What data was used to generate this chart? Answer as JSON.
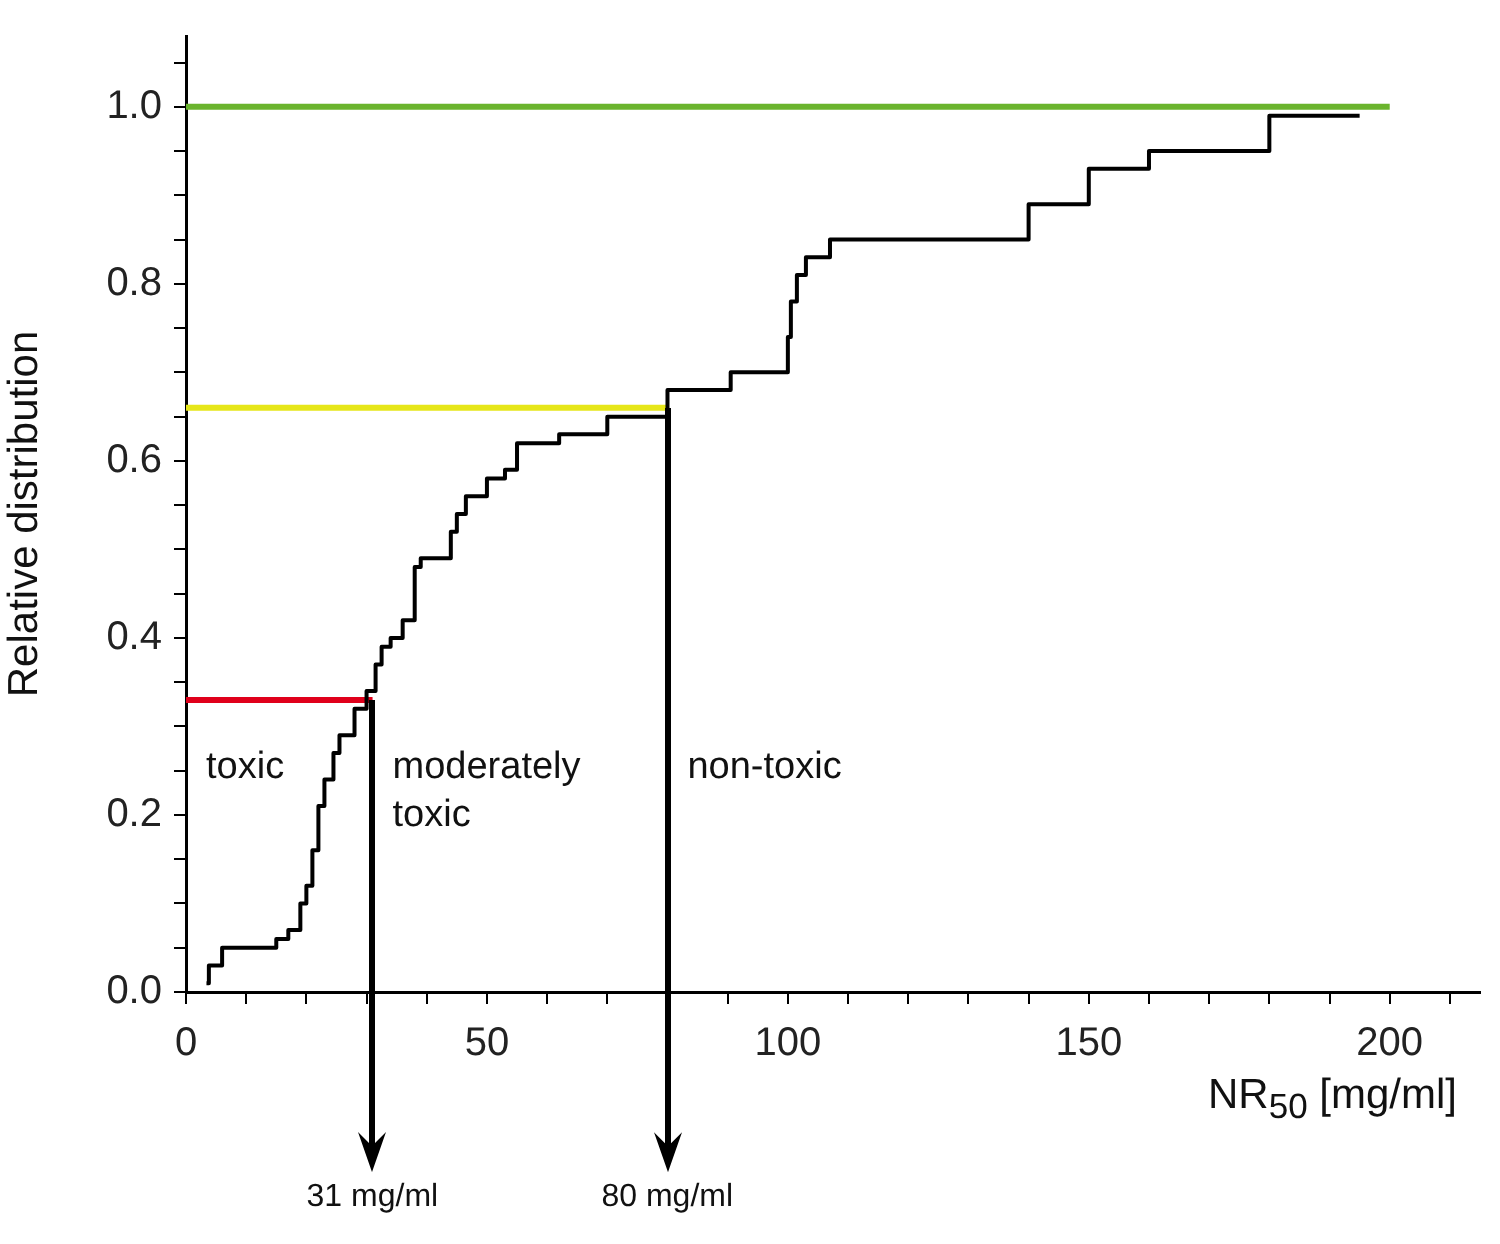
{
  "chart_data": {
    "type": "step",
    "xlabel": "NR$_{50}$ [mg/ml]",
    "ylabel": "Relative distribution",
    "xlim": [
      0,
      215
    ],
    "ylim": [
      0,
      1.08
    ],
    "xticks": [
      0,
      {
        "value": 10,
        "label": null
      },
      {
        "value": 20,
        "label": null
      },
      {
        "value": 30,
        "label": null
      },
      {
        "value": 40,
        "label": null
      },
      50,
      {
        "value": 60,
        "label": null
      },
      {
        "value": 70,
        "label": null
      },
      {
        "value": 80,
        "label": null
      },
      {
        "value": 90,
        "label": null
      },
      100,
      {
        "value": 110,
        "label": null
      },
      {
        "value": 120,
        "label": null
      },
      {
        "value": 130,
        "label": null
      },
      {
        "value": 140,
        "label": null
      },
      150,
      {
        "value": 160,
        "label": null
      },
      {
        "value": 170,
        "label": null
      },
      {
        "value": 180,
        "label": null
      },
      {
        "value": 190,
        "label": null
      },
      200,
      {
        "value": 210,
        "label": null
      }
    ],
    "yticks": [
      {
        "value": 0,
        "label": "0.0"
      },
      {
        "value": 0.05,
        "label": null
      },
      {
        "value": 0.1,
        "label": null
      },
      {
        "value": 0.15,
        "label": null
      },
      {
        "value": 0.2,
        "label": "0.2"
      },
      {
        "value": 0.25,
        "label": null
      },
      {
        "value": 0.3,
        "label": null
      },
      {
        "value": 0.35,
        "label": null
      },
      {
        "value": 0.4,
        "label": "0.4"
      },
      {
        "value": 0.45,
        "label": null
      },
      {
        "value": 0.5,
        "label": null
      },
      {
        "value": 0.55,
        "label": null
      },
      {
        "value": 0.6,
        "label": "0.6"
      },
      {
        "value": 0.65,
        "label": null
      },
      {
        "value": 0.7,
        "label": null
      },
      {
        "value": 0.75,
        "label": null
      },
      {
        "value": 0.8,
        "label": "0.8"
      },
      {
        "value": 0.85,
        "label": null
      },
      {
        "value": 0.9,
        "label": null
      },
      {
        "value": 0.95,
        "label": null
      },
      {
        "value": 1,
        "label": "1.0"
      },
      {
        "value": 1.05,
        "label": null
      }
    ],
    "grid": false,
    "legend": false,
    "marker": "none",
    "series": [
      {
        "type": "step",
        "color": "#000000",
        "x": [
          3.4,
          3.8,
          6,
          15,
          17,
          19,
          20,
          21,
          22,
          23,
          24.5,
          25.5,
          28,
          30,
          31.5,
          32.5,
          34,
          36,
          38,
          39,
          44,
          45,
          46.5,
          50,
          53,
          55,
          62,
          70,
          80,
          90.5,
          100,
          100.5,
          101.5,
          103,
          107,
          140,
          150,
          160,
          180,
          195
        ],
        "values": [
          0.01,
          0.03,
          0.05,
          0.06,
          0.07,
          0.1,
          0.12,
          0.16,
          0.21,
          0.24,
          0.27,
          0.29,
          0.32,
          0.34,
          0.37,
          0.39,
          0.4,
          0.42,
          0.48,
          0.49,
          0.52,
          0.54,
          0.56,
          0.58,
          0.59,
          0.62,
          0.63,
          0.65,
          0.68,
          0.7,
          0.74,
          0.78,
          0.81,
          0.83,
          0.85,
          0.89,
          0.93,
          0.95,
          0.99,
          0.99
        ]
      },
      {
        "type": "line",
        "color": "#e0001b",
        "x": [
          0,
          31
        ],
        "values": [
          0.33,
          0.33
        ]
      },
      {
        "type": "line",
        "color": "#e6e619",
        "x": [
          0,
          80
        ],
        "values": [
          0.66,
          0.66
        ]
      },
      {
        "type": "line",
        "color": "#6ab42d",
        "x": [
          0,
          200
        ],
        "values": [
          1,
          1
        ]
      }
    ],
    "annotations": [
      {
        "text": "31 mg/ml",
        "x": 31,
        "y": 0.33
      },
      {
        "text": "80 mg/ml",
        "x": 80,
        "y": 0.66
      },
      "toxic",
      "moderately toxic",
      "non-toxic"
    ]
  }
}
